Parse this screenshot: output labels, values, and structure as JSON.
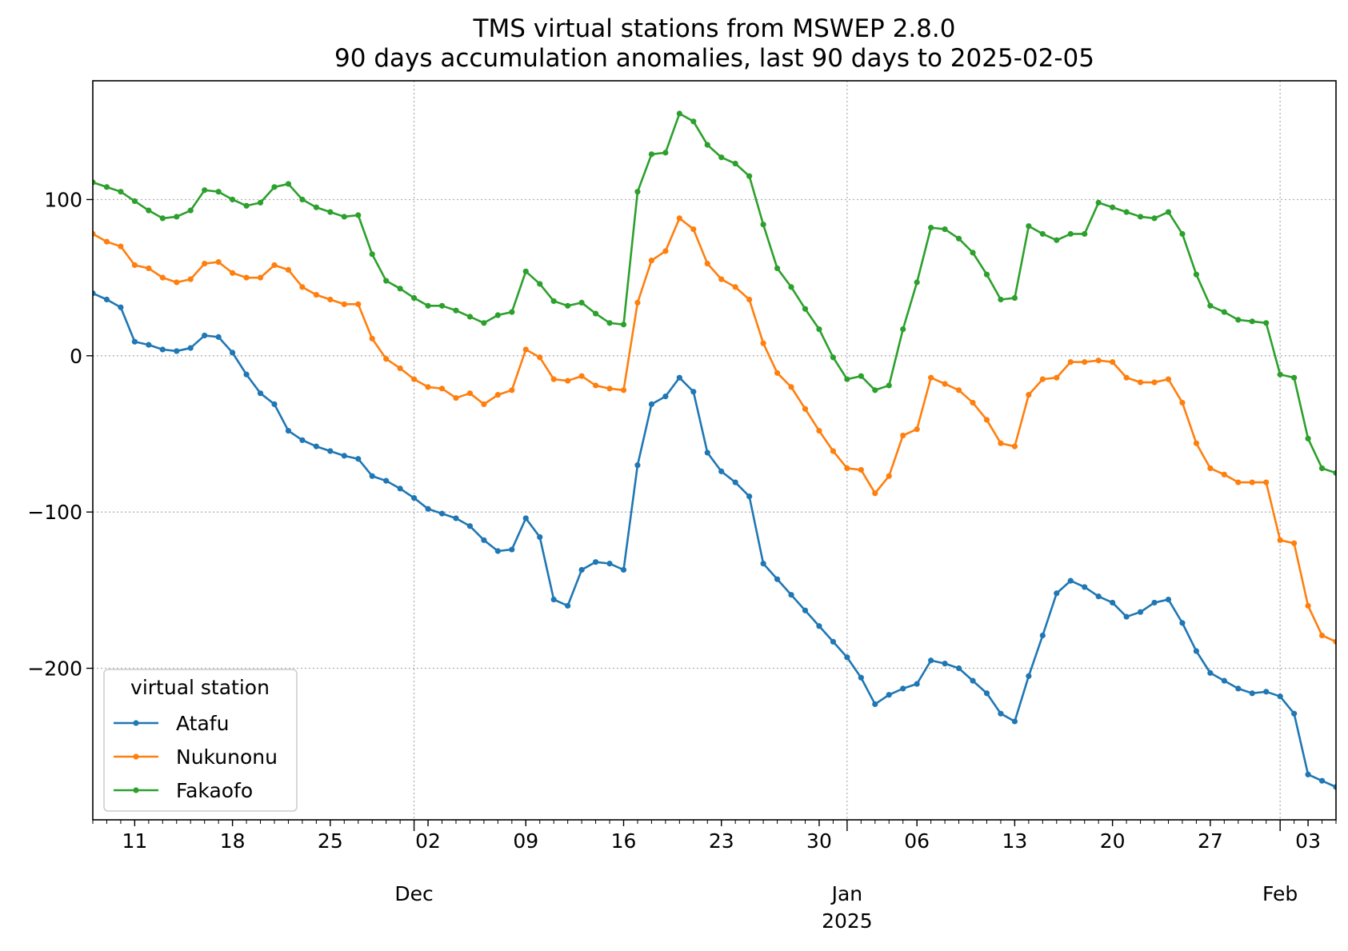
{
  "chart_data": {
    "type": "line",
    "title": "TMS virtual stations from MSWEP 2.8.0",
    "subtitle": "90 days accumulation anomalies, last 90 days to 2025-02-05",
    "xlabel": "",
    "ylabel": "",
    "x_start": "2024-11-08",
    "x_end": "2025-02-05",
    "xlim": [
      "2024-11-08",
      "2025-02-05"
    ],
    "ylim": [
      -297,
      176
    ],
    "grid": true,
    "x_ticks": [
      {
        "date": "2024-11-11",
        "label": "11"
      },
      {
        "date": "2024-11-18",
        "label": "18"
      },
      {
        "date": "2024-11-25",
        "label": "25"
      },
      {
        "date": "2024-12-02",
        "label": "02"
      },
      {
        "date": "2024-12-09",
        "label": "09"
      },
      {
        "date": "2024-12-16",
        "label": "16"
      },
      {
        "date": "2024-12-23",
        "label": "23"
      },
      {
        "date": "2024-12-30",
        "label": "30"
      },
      {
        "date": "2025-01-06",
        "label": "06"
      },
      {
        "date": "2025-01-13",
        "label": "13"
      },
      {
        "date": "2025-01-20",
        "label": "20"
      },
      {
        "date": "2025-01-27",
        "label": "27"
      },
      {
        "date": "2025-02-03",
        "label": "03"
      }
    ],
    "month_ticks": [
      {
        "date": "2024-12-01",
        "label": "Dec",
        "sublabel": ""
      },
      {
        "date": "2025-01-01",
        "label": "Jan",
        "sublabel": "2025"
      },
      {
        "date": "2025-02-01",
        "label": "Feb",
        "sublabel": ""
      }
    ],
    "y_ticks": [
      {
        "value": 100,
        "label": "100"
      },
      {
        "value": 0,
        "label": "0"
      },
      {
        "value": -100,
        "label": "−100"
      },
      {
        "value": -200,
        "label": "−200"
      }
    ],
    "legend": {
      "title": "virtual station",
      "placement": "lower-left"
    },
    "series": [
      {
        "name": "Atafu",
        "color": "#1f77b4",
        "values": [
          40,
          36,
          31,
          9,
          7,
          4,
          3,
          5,
          13,
          12,
          2,
          -12,
          -24,
          -31,
          -48,
          -54,
          -58,
          -61,
          -64,
          -66,
          -77,
          -80,
          -85,
          -91,
          -98,
          -101,
          -104,
          -109,
          -118,
          -125,
          -124,
          -104,
          -116,
          -156,
          -160,
          -137,
          -132,
          -133,
          -137,
          -70,
          -31,
          -26,
          -14,
          -23,
          -62,
          -74,
          -81,
          -90,
          -133,
          -143,
          -153,
          -163,
          -173,
          -183,
          -193,
          -206,
          -223,
          -217,
          -213,
          -210,
          -195,
          -197,
          -200,
          -208,
          -216,
          -229,
          -234,
          -205,
          -179,
          -152,
          -144,
          -148,
          -154,
          -158,
          -167,
          -164,
          -158,
          -156,
          -171,
          -189,
          -203,
          -208,
          -213,
          -216,
          -215,
          -218,
          -229,
          -268,
          -272,
          -276,
          -277
        ]
      },
      {
        "name": "Nukunonu",
        "color": "#ff7f0e",
        "values": [
          78,
          73,
          70,
          58,
          56,
          50,
          47,
          49,
          59,
          60,
          53,
          50,
          50,
          58,
          55,
          44,
          39,
          36,
          33,
          33,
          11,
          -2,
          -8,
          -15,
          -20,
          -21,
          -27,
          -24,
          -31,
          -25,
          -22,
          4,
          -1,
          -15,
          -16,
          -13,
          -19,
          -21,
          -22,
          34,
          61,
          67,
          88,
          81,
          59,
          49,
          44,
          36,
          8,
          -11,
          -20,
          -34,
          -48,
          -61,
          -72,
          -73,
          -88,
          -77,
          -51,
          -47,
          -14,
          -18,
          -22,
          -30,
          -41,
          -56,
          -58,
          -25,
          -15,
          -14,
          -4,
          -4,
          -3,
          -4,
          -14,
          -17,
          -17,
          -15,
          -30,
          -56,
          -72,
          -76,
          -81,
          -81,
          -81,
          -118,
          -120,
          -160,
          -179,
          -183,
          -183
        ]
      },
      {
        "name": "Fakaofo",
        "color": "#2ca02c",
        "values": [
          111,
          108,
          105,
          99,
          93,
          88,
          89,
          93,
          106,
          105,
          100,
          96,
          98,
          108,
          110,
          100,
          95,
          92,
          89,
          90,
          65,
          48,
          43,
          37,
          32,
          32,
          29,
          25,
          21,
          26,
          28,
          54,
          46,
          35,
          32,
          34,
          27,
          21,
          20,
          105,
          129,
          130,
          155,
          150,
          135,
          127,
          123,
          115,
          84,
          56,
          44,
          30,
          17,
          -1,
          -15,
          -13,
          -22,
          -19,
          17,
          47,
          82,
          81,
          75,
          66,
          52,
          36,
          37,
          83,
          78,
          74,
          78,
          78,
          98,
          95,
          92,
          89,
          88,
          92,
          78,
          52,
          32,
          28,
          23,
          22,
          21,
          -12,
          -14,
          -53,
          -72,
          -75,
          -74
        ]
      }
    ]
  }
}
